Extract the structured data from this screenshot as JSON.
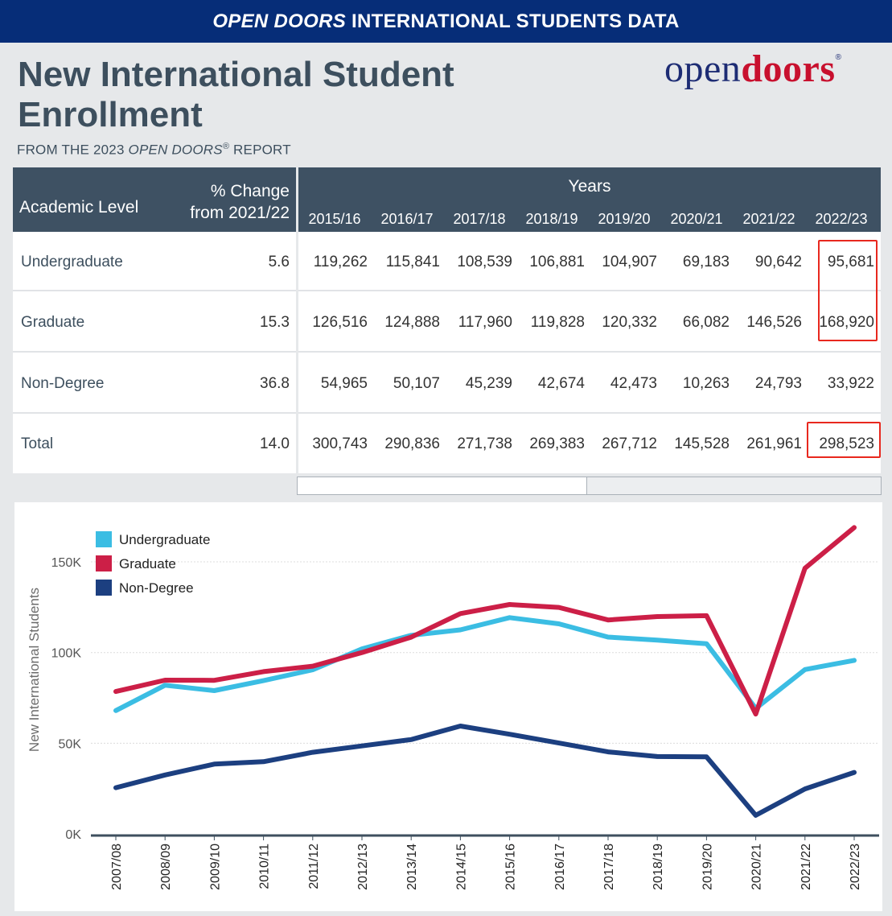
{
  "banner": {
    "italic": "OPEN DOORS",
    "rest": "INTERNATIONAL STUDENTS DATA"
  },
  "title": "New International Student Enrollment",
  "subtitle": {
    "pre": "FROM THE 2023",
    "italic": "OPEN DOORS",
    "reg": "®",
    "post": "REPORT"
  },
  "logo": {
    "part1": "open",
    "part2": "doors",
    "reg": "®"
  },
  "table": {
    "col_level": "Academic Level",
    "col_change_1": "% Change",
    "col_change_2": "from 2021/22",
    "col_years": "Years",
    "years": [
      "2015/16",
      "2016/17",
      "2017/18",
      "2018/19",
      "2019/20",
      "2020/21",
      "2021/22",
      "2022/23"
    ],
    "rows": [
      {
        "label": "Undergraduate",
        "change": "5.6",
        "values": [
          "119,262",
          "115,841",
          "108,539",
          "106,881",
          "104,907",
          "69,183",
          "90,642",
          "95,681"
        ]
      },
      {
        "label": "Graduate",
        "change": "15.3",
        "values": [
          "126,516",
          "124,888",
          "117,960",
          "119,828",
          "120,332",
          "66,082",
          "146,526",
          "168,920"
        ]
      },
      {
        "label": "Non-Degree",
        "change": "36.8",
        "values": [
          "54,965",
          "50,107",
          "45,239",
          "42,674",
          "42,473",
          "10,263",
          "24,793",
          "33,922"
        ]
      },
      {
        "label": "Total",
        "change": "14.0",
        "values": [
          "300,743",
          "290,836",
          "271,738",
          "269,383",
          "267,712",
          "145,528",
          "261,961",
          "298,523"
        ]
      }
    ]
  },
  "chart_data": {
    "type": "line",
    "x": [
      "2007/08",
      "2008/09",
      "2009/10",
      "2010/11",
      "2011/12",
      "2012/13",
      "2013/14",
      "2014/15",
      "2015/16",
      "2016/17",
      "2017/18",
      "2018/19",
      "2019/20",
      "2020/21",
      "2021/22",
      "2022/23"
    ],
    "ylabel": "New International Students",
    "ylim": [
      0,
      170000
    ],
    "yticks": [
      0,
      50000,
      100000,
      150000
    ],
    "ytick_labels": [
      "0K",
      "50K",
      "100K",
      "150K"
    ],
    "grid": "horizontal",
    "legend_placement": "top-left",
    "series": [
      {
        "name": "Undergraduate",
        "color": "#3bbde3",
        "values": [
          68000,
          82000,
          79000,
          84500,
          90500,
          102000,
          109500,
          112500,
          119262,
          115841,
          108539,
          106881,
          104907,
          69183,
          90642,
          95681
        ]
      },
      {
        "name": "Graduate",
        "color": "#cc1f47",
        "values": [
          78500,
          84800,
          84700,
          89500,
          92500,
          100000,
          108500,
          121500,
          126516,
          124888,
          117960,
          119828,
          120332,
          66082,
          146526,
          168920
        ]
      },
      {
        "name": "Non-Degree",
        "color": "#1c3f80",
        "values": [
          25500,
          32500,
          38500,
          39800,
          45000,
          48500,
          52000,
          59500,
          54965,
          50107,
          45239,
          42674,
          42473,
          10263,
          24793,
          33922
        ]
      }
    ]
  }
}
